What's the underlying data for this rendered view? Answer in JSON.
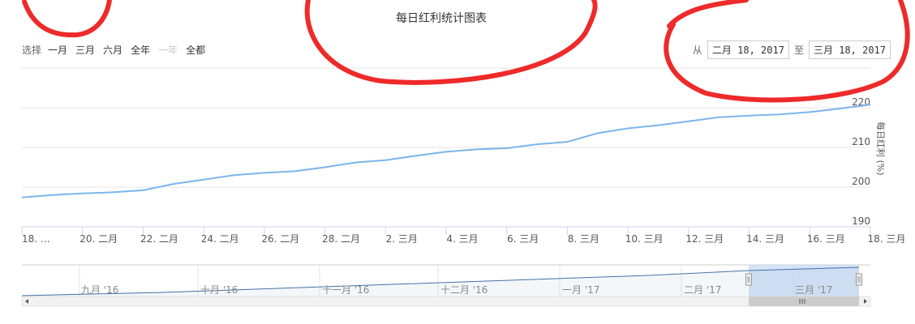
{
  "title": "每日红利统计图表",
  "range_selector": {
    "label": "选择",
    "buttons": [
      {
        "label": "一月",
        "disabled": false
      },
      {
        "label": "三月",
        "disabled": false
      },
      {
        "label": "六月",
        "disabled": false
      },
      {
        "label": "全年",
        "disabled": false
      },
      {
        "label": "一年",
        "disabled": true
      },
      {
        "label": "全都",
        "disabled": false
      }
    ]
  },
  "date_range": {
    "from_label": "从",
    "from_value": "二月 18, 2017",
    "to_label": "至",
    "to_value": "三月 18, 2017"
  },
  "colors": {
    "line": "#7cb5ec",
    "grid": "#e6e6e6",
    "navigator_mask": "#ccddf5",
    "navigator_line": "#4572a7"
  },
  "chart_data": {
    "type": "line",
    "title": "每日红利统计图表",
    "ylabel": "每日红利 (%)",
    "ylim": [
      190,
      220
    ],
    "yticks": [
      190,
      200,
      210,
      220
    ],
    "grid": true,
    "x": [
      "2017-02-18",
      "2017-02-19",
      "2017-02-20",
      "2017-02-21",
      "2017-02-22",
      "2017-02-23",
      "2017-02-24",
      "2017-02-25",
      "2017-02-26",
      "2017-02-27",
      "2017-02-28",
      "2017-03-01",
      "2017-03-02",
      "2017-03-03",
      "2017-03-04",
      "2017-03-05",
      "2017-03-06",
      "2017-03-07",
      "2017-03-08",
      "2017-03-09",
      "2017-03-10",
      "2017-03-11",
      "2017-03-12",
      "2017-03-13",
      "2017-03-14",
      "2017-03-15",
      "2017-03-16",
      "2017-03-17",
      "2017-03-18"
    ],
    "series": [
      {
        "values": [
          197.4,
          198.0,
          198.4,
          198.7,
          199.2,
          200.8,
          201.9,
          203.0,
          203.6,
          204.0,
          205.0,
          206.2,
          206.8,
          207.9,
          208.9,
          209.5,
          209.8,
          210.8,
          211.4,
          213.6,
          214.8,
          215.6,
          216.6,
          217.6,
          218.0,
          218.3,
          218.9,
          219.8,
          220.8
        ]
      }
    ],
    "xtick_labels": [
      "18. …",
      "20. 二月",
      "22. 二月",
      "24. 二月",
      "26. 二月",
      "28. 二月",
      "2. 三月",
      "4. 三月",
      "6. 三月",
      "8. 三月",
      "10. 三月",
      "12. 三月",
      "14. 三月",
      "16. 三月",
      "18. 三月"
    ],
    "navigator_labels": [
      "九月 '16",
      "十月 '16",
      "十一月 '16",
      "十二月 '16",
      "一月 '17",
      "二月 '17",
      "三月 '17"
    ]
  }
}
